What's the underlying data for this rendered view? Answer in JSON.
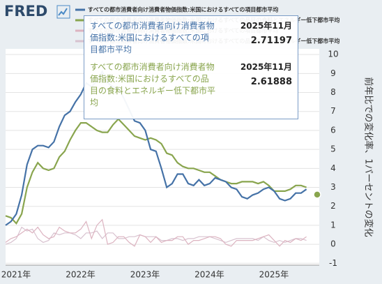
{
  "logo": "FRED",
  "chart_data": {
    "type": "line",
    "y_label": "前年比での変化率、1パーセントの変化",
    "categories": [
      "2021年",
      null,
      null,
      null,
      null,
      null,
      null,
      null,
      null,
      null,
      null,
      null,
      "2022年",
      null,
      null,
      null,
      null,
      null,
      null,
      null,
      null,
      null,
      null,
      null,
      "2023年",
      null,
      null,
      null,
      null,
      null,
      null,
      null,
      null,
      null,
      null,
      null,
      "2024年",
      null,
      null,
      null,
      null,
      null,
      null,
      null,
      null,
      null,
      null,
      null,
      "2025年",
      null,
      null,
      null,
      null,
      null,
      null,
      null,
      null,
      null,
      null
    ],
    "ylim": [
      -1.1,
      10.3
    ],
    "yticks": [
      -1,
      0,
      1,
      2,
      3,
      4,
      5,
      6,
      7,
      8,
      9,
      10
    ],
    "grid": true,
    "legend": "top",
    "series": [
      {
        "name": "すべての都市消費者向け消費者物価指数:米国におけるすべての項目都市平均",
        "color": "#4572a7",
        "values": [
          1.0,
          1.2,
          1.6,
          2.6,
          4.2,
          5.0,
          5.2,
          5.2,
          5.1,
          5.4,
          6.2,
          6.8,
          7.0,
          7.5,
          7.9,
          8.5,
          8.3,
          8.6,
          9.1,
          8.5,
          8.3,
          8.2,
          7.7,
          7.1,
          6.5,
          6.4,
          6.0,
          5.0,
          4.9,
          4.0,
          3.0,
          3.2,
          3.7,
          3.7,
          3.2,
          3.1,
          3.4,
          3.1,
          3.2,
          3.5,
          3.4,
          3.3,
          3.0,
          2.9,
          2.5,
          2.4,
          2.6,
          2.7,
          2.9,
          3.0,
          2.8,
          2.4,
          2.3,
          2.4,
          2.7,
          2.7,
          2.9,
          null,
          2.71197
        ]
      },
      {
        "name": "すべての都市消費者向け消費者物価指数:米国におけるすべての品目の食料とエネルギー低下都市平均",
        "color": "#89a54e",
        "values": [
          1.5,
          1.4,
          1.1,
          1.6,
          3.0,
          3.8,
          4.3,
          4.0,
          3.9,
          4.0,
          4.6,
          4.9,
          5.5,
          6.0,
          6.4,
          6.4,
          6.2,
          6.0,
          5.9,
          5.9,
          6.3,
          6.6,
          6.3,
          6.0,
          5.7,
          5.6,
          5.5,
          5.6,
          5.5,
          5.3,
          4.8,
          4.7,
          4.3,
          4.1,
          4.0,
          4.0,
          3.9,
          3.8,
          3.8,
          3.6,
          3.4,
          3.3,
          3.2,
          3.2,
          3.3,
          3.3,
          3.3,
          3.2,
          3.3,
          3.1,
          2.8,
          2.8,
          2.8,
          2.9,
          3.1,
          3.1,
          3.0,
          null,
          2.61888
        ]
      },
      {
        "name": "すべての都市消費者向け消費者物価指数:米国におけるすべての項目都市平均",
        "color": "#dcb3c0",
        "values": [
          0.1,
          0.3,
          0.4,
          0.6,
          0.8,
          0.6,
          0.9,
          0.5,
          0.3,
          0.4,
          0.9,
          0.7,
          0.6,
          0.6,
          0.8,
          1.2,
          0.3,
          1.0,
          1.3,
          0.0,
          0.1,
          0.4,
          0.4,
          0.1,
          -0.1,
          0.5,
          0.4,
          0.1,
          0.4,
          0.1,
          0.2,
          0.2,
          0.4,
          0.4,
          0.0,
          0.2,
          0.2,
          0.3,
          0.4,
          0.4,
          0.3,
          0.0,
          -0.1,
          0.2,
          0.2,
          0.2,
          0.2,
          0.3,
          0.4,
          0.5,
          0.2,
          -0.1,
          0.2,
          0.1,
          0.3,
          0.2,
          0.4,
          null,
          0.2
        ]
      },
      {
        "name": "すべての都市消費者向け消費者物価指数:米国におけるすべての品目の食料とエネルギー低下都市平均",
        "color": "#d8c2cf",
        "values": [
          0.0,
          0.1,
          0.3,
          0.9,
          0.7,
          0.8,
          0.3,
          0.1,
          0.2,
          0.6,
          0.5,
          0.6,
          0.6,
          0.5,
          0.3,
          0.6,
          0.6,
          0.7,
          0.3,
          0.6,
          0.6,
          0.3,
          0.3,
          0.4,
          0.4,
          0.5,
          0.4,
          0.4,
          0.4,
          0.2,
          0.2,
          0.3,
          0.3,
          0.2,
          0.3,
          0.3,
          0.4,
          0.4,
          0.4,
          0.3,
          0.2,
          0.1,
          0.2,
          0.3,
          0.3,
          0.3,
          0.3,
          0.2,
          0.4,
          0.2,
          0.1,
          0.2,
          0.1,
          0.2,
          0.3,
          0.3,
          0.2,
          null,
          0.2
        ]
      }
    ],
    "tooltip": {
      "date": "2025年11月"
    }
  }
}
